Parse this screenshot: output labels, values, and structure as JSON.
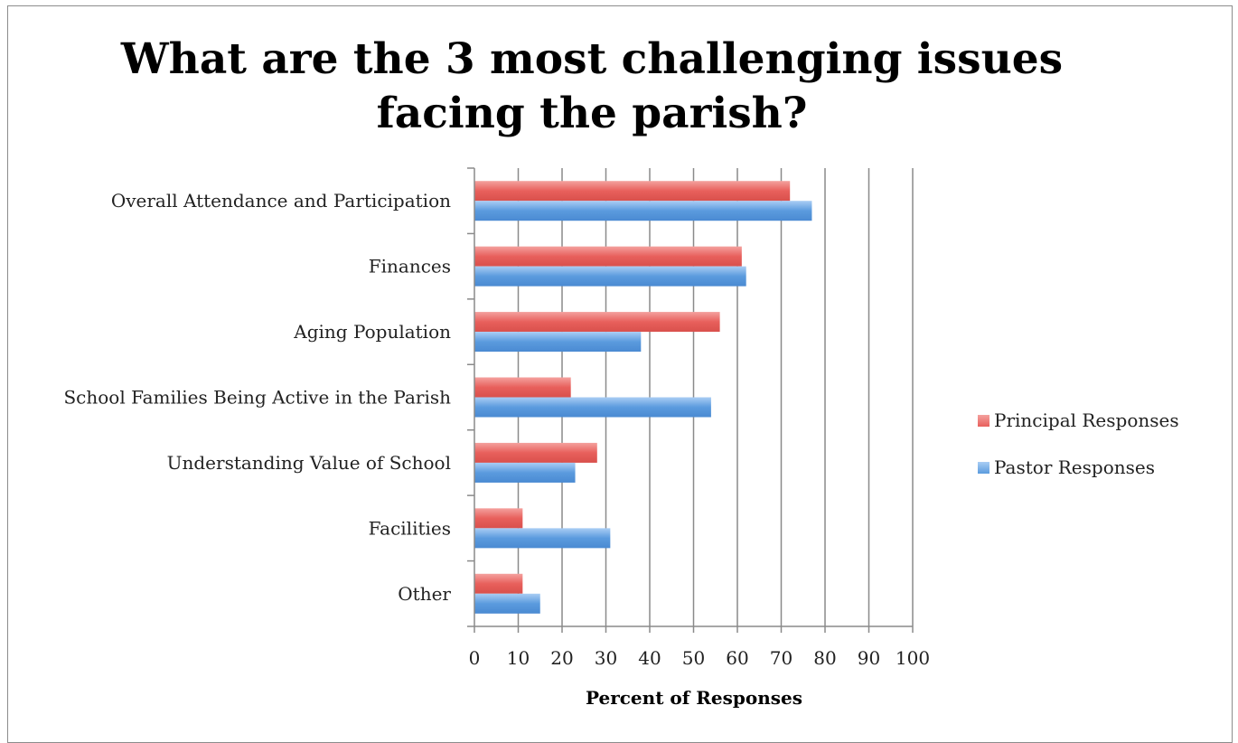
{
  "chart_data": {
    "type": "bar",
    "orientation": "horizontal",
    "title": "What are the 3 most challenging issues facing the parish?",
    "xlabel": "Percent of Responses",
    "ylabel": "",
    "xlim": [
      0,
      100
    ],
    "xticks": [
      "0",
      "10",
      "20",
      "30",
      "40",
      "50",
      "60",
      "70",
      "80",
      "90",
      "100"
    ],
    "categories": [
      "Overall Attendance and Participation",
      "Finances",
      "Aging Population",
      "School Families Being Active in the Parish",
      "Understanding Value of School",
      "Facilities",
      "Other"
    ],
    "series": [
      {
        "name": "Principal Responses",
        "color": "#e8605c",
        "values": [
          72,
          61,
          56,
          22,
          28,
          11,
          11
        ]
      },
      {
        "name": "Pastor Responses",
        "color": "#5b9bde",
        "values": [
          77,
          62,
          38,
          54,
          23,
          31,
          15
        ]
      }
    ],
    "grid": "vertical",
    "legend_position": "right"
  }
}
